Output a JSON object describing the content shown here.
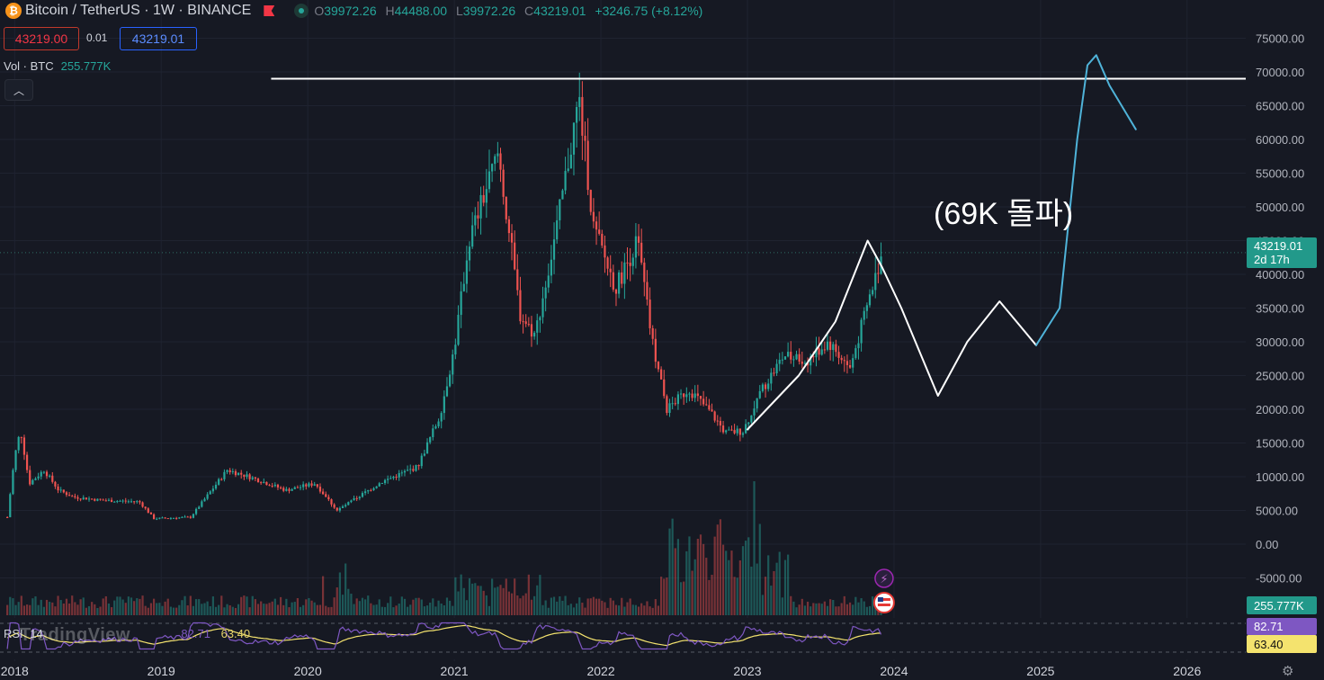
{
  "header": {
    "symbol": "Bitcoin / TetherUS · 1W · BINANCE",
    "open_label": "O",
    "open": "39972.26",
    "high_label": "H",
    "high": "44488.00",
    "low_label": "L",
    "low": "39972.26",
    "close_label": "C",
    "close": "43219.01",
    "change": "+3246.75 (+8.12%)",
    "coin_icon": "bitcoin-icon",
    "flag_icon": "flag-icon",
    "status_icon": "market-open-dot-icon"
  },
  "trade": {
    "sell": "43219.00",
    "spread": "0.01",
    "buy": "43219.01"
  },
  "volume": {
    "label": "Vol · BTC",
    "value": "255.777K"
  },
  "rsi": {
    "label": "RSI",
    "length": "14",
    "value1": "82.71",
    "value2": "63.40"
  },
  "watermark": "TradingView",
  "price_tag": {
    "price": "43219.01",
    "countdown": "2d 17h"
  },
  "volume_tag": "255.777K",
  "rsi_tags": {
    "rsi": "82.71",
    "ma": "63.40"
  },
  "annotation": "(69K 돌파)",
  "colors": {
    "up": "#26a69a",
    "down": "#ef5350",
    "bg": "#161923",
    "rsi": "#7e57c2",
    "rsi_ma": "#f4e36e",
    "drawing": "#ffffff",
    "projection": "#4fb3d9"
  },
  "chart_data": {
    "type": "candlestick",
    "interval": "1W",
    "y_ticks": [
      "75000.00",
      "70000.00",
      "65000.00",
      "60000.00",
      "55000.00",
      "50000.00",
      "45000.00",
      "40000.00",
      "35000.00",
      "30000.00",
      "25000.00",
      "20000.00",
      "15000.00",
      "10000.00",
      "5000.00",
      "0.00",
      "-5000.00"
    ],
    "x_ticks": [
      "2018",
      "2019",
      "2020",
      "2021",
      "2022",
      "2023",
      "2024",
      "2025",
      "2026"
    ],
    "ylim": [
      -10000,
      78000
    ],
    "current_price": 43219.01,
    "price_path": [
      {
        "t": 2017.95,
        "p": 4000
      },
      {
        "t": 2018.0,
        "p": 13000
      },
      {
        "t": 2018.04,
        "p": 17000
      },
      {
        "t": 2018.1,
        "p": 9000
      },
      {
        "t": 2018.2,
        "p": 11000
      },
      {
        "t": 2018.3,
        "p": 8000
      },
      {
        "t": 2018.4,
        "p": 7000
      },
      {
        "t": 2018.6,
        "p": 6500
      },
      {
        "t": 2018.85,
        "p": 6300
      },
      {
        "t": 2018.95,
        "p": 3800
      },
      {
        "t": 2019.2,
        "p": 4000
      },
      {
        "t": 2019.45,
        "p": 11000
      },
      {
        "t": 2019.6,
        "p": 10000
      },
      {
        "t": 2019.85,
        "p": 8000
      },
      {
        "t": 2020.05,
        "p": 9000
      },
      {
        "t": 2020.2,
        "p": 5000
      },
      {
        "t": 2020.5,
        "p": 9200
      },
      {
        "t": 2020.75,
        "p": 11500
      },
      {
        "t": 2020.9,
        "p": 19000
      },
      {
        "t": 2021.0,
        "p": 29000
      },
      {
        "t": 2021.1,
        "p": 45000
      },
      {
        "t": 2021.3,
        "p": 58000
      },
      {
        "t": 2021.45,
        "p": 34000
      },
      {
        "t": 2021.55,
        "p": 31000
      },
      {
        "t": 2021.7,
        "p": 47000
      },
      {
        "t": 2021.85,
        "p": 66000
      },
      {
        "t": 2021.95,
        "p": 47000
      },
      {
        "t": 2022.1,
        "p": 38000
      },
      {
        "t": 2022.25,
        "p": 45000
      },
      {
        "t": 2022.35,
        "p": 30000
      },
      {
        "t": 2022.45,
        "p": 20000
      },
      {
        "t": 2022.6,
        "p": 23000
      },
      {
        "t": 2022.75,
        "p": 19500
      },
      {
        "t": 2022.85,
        "p": 16500
      },
      {
        "t": 2022.97,
        "p": 16800
      },
      {
        "t": 2023.1,
        "p": 23000
      },
      {
        "t": 2023.25,
        "p": 28000
      },
      {
        "t": 2023.4,
        "p": 27000
      },
      {
        "t": 2023.55,
        "p": 30000
      },
      {
        "t": 2023.7,
        "p": 26000
      },
      {
        "t": 2023.8,
        "p": 34000
      },
      {
        "t": 2023.92,
        "p": 43219
      }
    ],
    "rsi_last": 82.71,
    "rsi_ma_last": 63.4,
    "drawings": {
      "resistance_price": 69000,
      "resistance_start": 2019.75,
      "resistance_end": 2027.0,
      "projection_white": [
        {
          "t": 2023.0,
          "p": 17000
        },
        {
          "t": 2023.35,
          "p": 25000
        },
        {
          "t": 2023.6,
          "p": 33000
        },
        {
          "t": 2023.82,
          "p": 45000
        },
        {
          "t": 2023.92,
          "p": 41000
        },
        {
          "t": 2024.05,
          "p": 35000
        },
        {
          "t": 2024.3,
          "p": 22000
        },
        {
          "t": 2024.5,
          "p": 30000
        },
        {
          "t": 2024.72,
          "p": 36000
        },
        {
          "t": 2024.97,
          "p": 29500
        }
      ],
      "projection_blue": [
        {
          "t": 2024.97,
          "p": 29500
        },
        {
          "t": 2025.13,
          "p": 35000
        },
        {
          "t": 2025.25,
          "p": 60000
        },
        {
          "t": 2025.32,
          "p": 71000
        },
        {
          "t": 2025.38,
          "p": 72500
        },
        {
          "t": 2025.47,
          "p": 68000
        },
        {
          "t": 2025.65,
          "p": 61500
        }
      ]
    }
  }
}
